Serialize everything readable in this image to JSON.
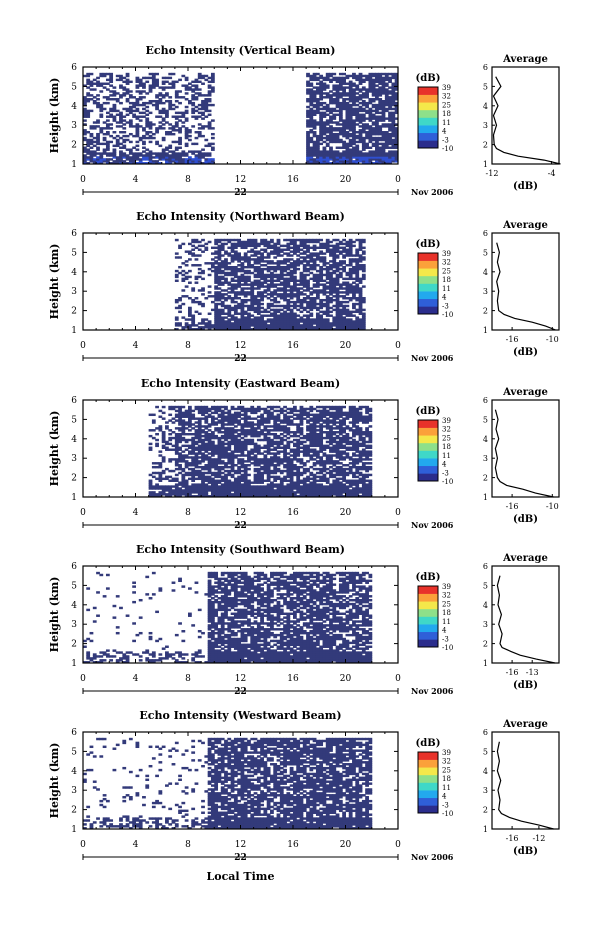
{
  "figure": {
    "xlabel": "Local Time",
    "xticks": [
      "0",
      "4",
      "8",
      "12",
      "16",
      "20",
      "0"
    ],
    "date_tick": "22",
    "date_label": "Nov 2006",
    "ylabel": "Height (km)",
    "yticks": [
      "1",
      "2",
      "3",
      "4",
      "5",
      "6"
    ],
    "colorbar_unit": "(dB)",
    "colorbar_ticks": [
      "39",
      "32",
      "25",
      "18",
      "11",
      "4",
      "-3",
      "-10"
    ],
    "colorbar_colors": [
      "#2b2d8c",
      "#2f5fd8",
      "#22a9ee",
      "#3fd8c8",
      "#8ee08a",
      "#f4e84a",
      "#fba13a",
      "#e8322a"
    ],
    "echo_color": "#333a7a",
    "avg_title": "Average",
    "avg_xlabel": "(dB)"
  },
  "chart_data": [
    {
      "type": "heatmap",
      "title": "Echo Intensity (Vertical Beam)",
      "xlabel": "Local Time",
      "ylabel": "Height (km)",
      "xlim": [
        0,
        24
      ],
      "ylim": [
        1,
        6
      ],
      "echo_periods": [
        [
          0.0,
          10.0,
          0.45
        ],
        [
          17.0,
          24.0,
          0.8
        ]
      ],
      "average_profile": {
        "title": "Average",
        "xlabel": "(dB)",
        "xlim": [
          -12,
          -3
        ],
        "xticks": [
          "-12",
          "-4"
        ],
        "height": [
          1.0,
          1.2,
          1.4,
          1.6,
          1.8,
          2.0,
          2.5,
          3.0,
          3.5,
          4.0,
          4.5,
          5.0,
          5.5
        ],
        "value": [
          -2.8,
          -5.0,
          -8.5,
          -10.4,
          -11.4,
          -11.7,
          -11.8,
          -11.4,
          -11.8,
          -11.2,
          -11.8,
          -10.8,
          -11.5
        ]
      }
    },
    {
      "type": "heatmap",
      "title": "Echo Intensity (Northward Beam)",
      "xlabel": "Local Time",
      "ylabel": "Height (km)",
      "xlim": [
        0,
        24
      ],
      "ylim": [
        1,
        6
      ],
      "echo_periods": [
        [
          7.0,
          9.8,
          0.3
        ],
        [
          9.8,
          21.5,
          0.75
        ]
      ],
      "average_profile": {
        "title": "Average",
        "xlabel": "(dB)",
        "xlim": [
          -19,
          -9
        ],
        "xticks": [
          "-16",
          "-10"
        ],
        "height": [
          1.0,
          1.2,
          1.4,
          1.6,
          1.8,
          2.0,
          2.5,
          3.0,
          3.5,
          4.0,
          4.5,
          5.0,
          5.5
        ],
        "value": [
          -9.5,
          -11.0,
          -13.0,
          -15.6,
          -17.2,
          -18.0,
          -18.2,
          -18.0,
          -18.3,
          -17.8,
          -18.2,
          -17.9,
          -18.3
        ]
      }
    },
    {
      "type": "heatmap",
      "title": "Echo Intensity (Eastward Beam)",
      "xlabel": "Local Time",
      "ylabel": "Height (km)",
      "xlim": [
        0,
        24
      ],
      "ylim": [
        1,
        6
      ],
      "echo_periods": [
        [
          5.0,
          7.0,
          0.3
        ],
        [
          7.0,
          21.8,
          0.78
        ]
      ],
      "average_profile": {
        "title": "Average",
        "xlabel": "(dB)",
        "xlim": [
          -19,
          -9
        ],
        "xticks": [
          "-16",
          "-10"
        ],
        "height": [
          1.0,
          1.2,
          1.4,
          1.6,
          1.8,
          2.0,
          2.5,
          3.0,
          3.5,
          4.0,
          4.5,
          5.0,
          5.5
        ],
        "value": [
          -9.8,
          -12.5,
          -14.4,
          -16.8,
          -17.8,
          -18.2,
          -18.5,
          -18.2,
          -18.5,
          -18.0,
          -18.4,
          -18.1,
          -18.5
        ]
      }
    },
    {
      "type": "heatmap",
      "title": "Echo Intensity (Southward Beam)",
      "xlabel": "Local Time",
      "ylabel": "Height (km)",
      "xlim": [
        0,
        24
      ],
      "ylim": [
        1,
        6
      ],
      "echo_periods": [
        [
          0.0,
          9.5,
          0.05
        ],
        [
          9.5,
          22.0,
          0.78
        ]
      ],
      "average_profile": {
        "title": "Average",
        "xlabel": "(dB)",
        "xlim": [
          -19,
          -9
        ],
        "xticks": [
          "-16",
          "-13"
        ],
        "height": [
          1.0,
          1.2,
          1.4,
          1.6,
          1.8,
          2.0,
          2.5,
          3.0,
          3.5,
          4.0,
          4.5,
          5.0,
          5.5
        ],
        "value": [
          -9.6,
          -12.4,
          -14.8,
          -16.2,
          -17.5,
          -17.8,
          -17.5,
          -18.0,
          -17.6,
          -18.1,
          -17.9,
          -18.2,
          -17.8
        ]
      }
    },
    {
      "type": "heatmap",
      "title": "Echo Intensity (Westward Beam)",
      "xlabel": "Local Time",
      "ylabel": "Height (km)",
      "xlim": [
        0,
        24
      ],
      "ylim": [
        1,
        6
      ],
      "echo_periods": [
        [
          0.0,
          9.5,
          0.08
        ],
        [
          9.5,
          22.0,
          0.82
        ]
      ],
      "average_profile": {
        "title": "Average",
        "xlabel": "(dB)",
        "xlim": [
          -19,
          -9
        ],
        "xticks": [
          "-16",
          "-12"
        ],
        "height": [
          1.0,
          1.2,
          1.4,
          1.6,
          1.8,
          2.0,
          2.5,
          3.0,
          3.5,
          4.0,
          4.5,
          5.0,
          5.5
        ],
        "value": [
          -9.8,
          -12.0,
          -14.6,
          -16.4,
          -17.6,
          -18.0,
          -17.8,
          -18.1,
          -17.7,
          -18.2,
          -17.9,
          -18.2,
          -17.9
        ]
      }
    }
  ]
}
